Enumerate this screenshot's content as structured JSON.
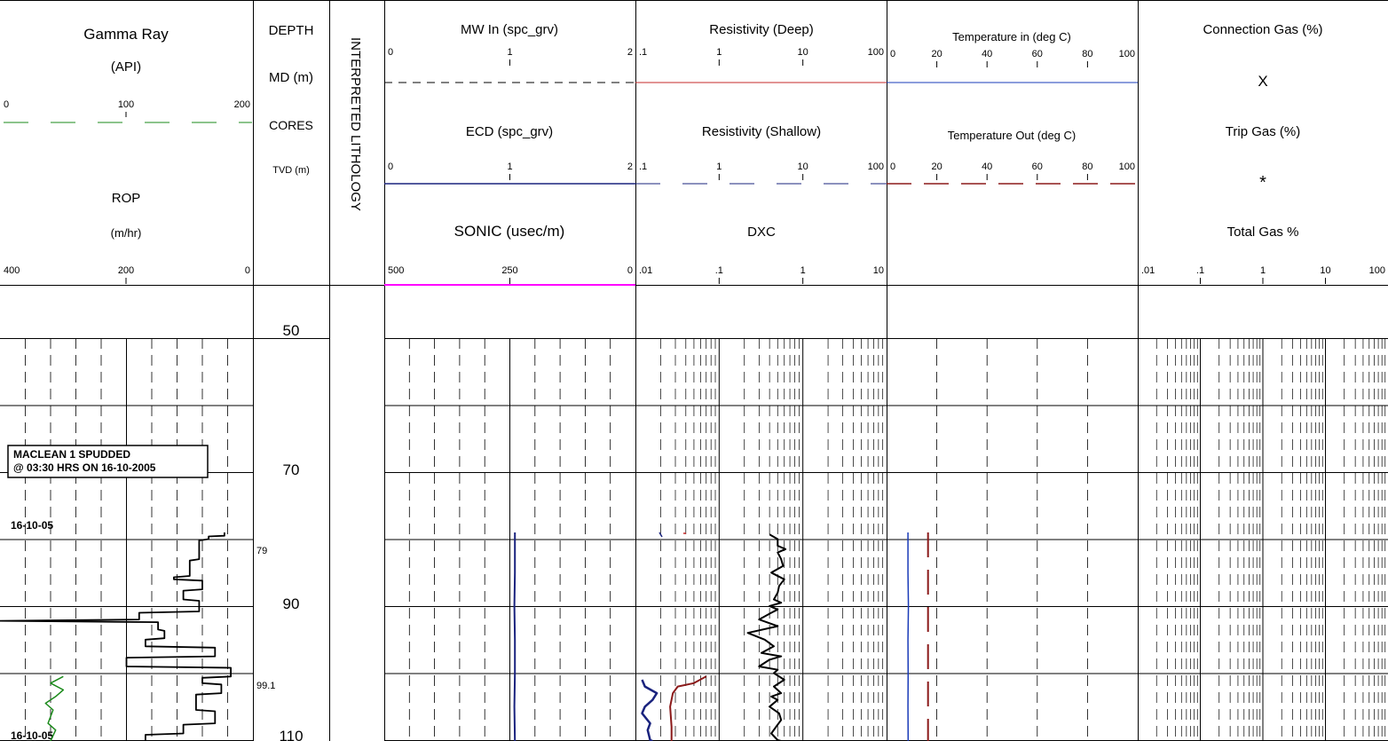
{
  "header": {
    "gamma": {
      "title": "Gamma Ray",
      "unit": "(API)",
      "ticks": [
        "0",
        "100",
        "200"
      ],
      "color": "#1a8a1a"
    },
    "rop": {
      "title": "ROP",
      "unit": "(m/hr)",
      "ticks": [
        "400",
        "200",
        "0"
      ]
    },
    "depth": {
      "title": "DEPTH",
      "md": "MD (m)",
      "cores": "CORES",
      "tvd": "TVD (m)"
    },
    "lithology": "INTERPRETED LITHOLOGY",
    "mw_in": {
      "title": "MW In (spc_grv)",
      "ticks": [
        "0",
        "1",
        "2"
      ]
    },
    "ecd": {
      "title": "ECD (spc_grv)",
      "ticks": [
        "0",
        "1",
        "2"
      ],
      "color": "#1a237e"
    },
    "sonic": {
      "title": "SONIC (usec/m)",
      "ticks": [
        "500",
        "250",
        "0"
      ],
      "color": "#ff00ff"
    },
    "res_deep": {
      "title": "Resistivity (Deep)",
      "ticks": [
        ".1",
        "1",
        "10",
        "100"
      ],
      "color": "#c62828"
    },
    "res_shallow": {
      "title": "Resistivity (Shallow)",
      "ticks": [
        ".1",
        "1",
        "10",
        "100"
      ],
      "color": "#1a237e"
    },
    "dxc": {
      "title": "DXC",
      "ticks": [
        ".01",
        ".1",
        "1",
        "10"
      ]
    },
    "temp_in": {
      "title": "Temperature in (deg C)",
      "ticks": [
        "0",
        "20",
        "40",
        "60",
        "80",
        "100"
      ],
      "color": "#1a3bb8"
    },
    "temp_out": {
      "title": "Temperature Out (deg C)",
      "ticks": [
        "0",
        "20",
        "40",
        "60",
        "80",
        "100"
      ],
      "color": "#8b1a1a"
    },
    "conn_gas": {
      "title": "Connection Gas (%)",
      "marker": "X",
      "color": "#8b1a1a"
    },
    "trip_gas": {
      "title": "Trip Gas (%)",
      "marker": "*",
      "color": "#1a237e"
    },
    "total_gas": {
      "title": "Total Gas %",
      "ticks": [
        ".01",
        ".1",
        "1",
        "10",
        "100"
      ]
    }
  },
  "depth_labels": [
    "50",
    "70",
    "90",
    "110"
  ],
  "tvd_labels": [
    "79",
    "99.1"
  ],
  "annotations": {
    "spud_line1": "MACLEAN 1 SPUDDED",
    "spud_line2": "@ 03:30 HRS ON 16-10-2005",
    "date1": "16-10-05",
    "date2": "16-10-05"
  },
  "chart_data": {
    "type": "line",
    "title": "",
    "y_axis": "Depth MD (m)",
    "depth_range": [
      46,
      112
    ],
    "series": [
      {
        "name": "ROP",
        "scale": [
          400,
          0
        ],
        "points": [
          [
            79.0,
            45
          ],
          [
            79.5,
            45
          ],
          [
            79.6,
            70
          ],
          [
            80.0,
            70
          ],
          [
            80.2,
            85
          ],
          [
            83.0,
            85
          ],
          [
            83.2,
            100
          ],
          [
            85.5,
            100
          ],
          [
            85.7,
            125
          ],
          [
            86.0,
            125
          ],
          [
            86.2,
            80
          ],
          [
            87.5,
            80
          ],
          [
            87.7,
            110
          ],
          [
            89.0,
            110
          ],
          [
            89.2,
            85
          ],
          [
            90.8,
            85
          ],
          [
            91.0,
            180
          ],
          [
            92.0,
            180
          ],
          [
            92.2,
            400
          ],
          [
            92.4,
            150
          ],
          [
            93.5,
            150
          ],
          [
            93.7,
            140
          ],
          [
            94.8,
            140
          ],
          [
            95.0,
            170
          ],
          [
            96.0,
            170
          ],
          [
            96.2,
            60
          ],
          [
            97.5,
            60
          ],
          [
            97.7,
            200
          ],
          [
            99.0,
            200
          ],
          [
            99.2,
            35
          ],
          [
            100.5,
            35
          ],
          [
            100.7,
            80
          ],
          [
            101.5,
            80
          ],
          [
            101.7,
            50
          ],
          [
            103.0,
            50
          ],
          [
            103.2,
            90
          ],
          [
            105.5,
            90
          ],
          [
            105.7,
            60
          ],
          [
            107.5,
            60
          ],
          [
            107.7,
            110
          ],
          [
            109.0,
            110
          ],
          [
            109.2,
            170
          ],
          [
            110.5,
            170
          ],
          [
            110.7,
            10
          ]
        ]
      },
      {
        "name": "Gamma Ray",
        "scale": [
          0,
          200
        ],
        "points": [
          [
            100.5,
            50
          ],
          [
            101.5,
            40
          ],
          [
            102.5,
            50
          ],
          [
            103.5,
            44
          ],
          [
            104.5,
            36
          ],
          [
            105.5,
            42
          ],
          [
            107.5,
            38
          ],
          [
            108.5,
            44
          ],
          [
            110.5,
            40
          ]
        ]
      },
      {
        "name": "SONIC",
        "scale": [
          500,
          0
        ],
        "points": [
          [
            79.0,
            240
          ],
          [
            85.0,
            240
          ],
          [
            90.0,
            241
          ],
          [
            95.0,
            240
          ],
          [
            100.0,
            240
          ],
          [
            105.0,
            241
          ],
          [
            111.0,
            240
          ]
        ]
      },
      {
        "name": "Resistivity (Deep)",
        "scale_log": [
          0.1,
          100
        ],
        "points": [
          [
            100.5,
            0.7
          ],
          [
            101.5,
            0.5
          ],
          [
            102.0,
            0.32
          ],
          [
            103.0,
            0.28
          ],
          [
            105.0,
            0.26
          ],
          [
            108.0,
            0.27
          ],
          [
            111.0,
            0.27
          ]
        ]
      },
      {
        "name": "Resistivity (Shallow)",
        "scale_log": [
          0.1,
          100
        ],
        "points": [
          [
            101.0,
            0.12
          ],
          [
            102.0,
            0.13
          ],
          [
            103.0,
            0.18
          ],
          [
            104.0,
            0.16
          ],
          [
            105.0,
            0.13
          ],
          [
            106.0,
            0.12
          ],
          [
            107.5,
            0.15
          ],
          [
            108.5,
            0.14
          ],
          [
            110.0,
            0.15
          ],
          [
            111.0,
            0.16
          ]
        ]
      },
      {
        "name": "DXC",
        "scale_log": [
          0.01,
          10
        ],
        "points": [
          [
            79.3,
            0.4
          ],
          [
            80.0,
            0.5
          ],
          [
            81.0,
            0.5
          ],
          [
            81.5,
            0.62
          ],
          [
            82.0,
            0.5
          ],
          [
            83.0,
            0.55
          ],
          [
            84.0,
            0.58
          ],
          [
            85.0,
            0.42
          ],
          [
            86.0,
            0.6
          ],
          [
            87.0,
            0.52
          ],
          [
            88.0,
            0.5
          ],
          [
            89.0,
            0.45
          ],
          [
            89.5,
            0.55
          ],
          [
            90.0,
            0.4
          ],
          [
            90.5,
            0.5
          ],
          [
            91.0,
            0.42
          ],
          [
            92.0,
            0.3
          ],
          [
            93.0,
            0.5
          ],
          [
            94.0,
            0.22
          ],
          [
            95.0,
            0.35
          ],
          [
            96.0,
            0.45
          ],
          [
            97.0,
            0.32
          ],
          [
            97.5,
            0.55
          ],
          [
            98.0,
            0.4
          ],
          [
            99.0,
            0.3
          ],
          [
            99.5,
            0.5
          ],
          [
            100.0,
            0.45
          ],
          [
            101.0,
            0.6
          ],
          [
            102.0,
            0.45
          ],
          [
            103.0,
            0.55
          ],
          [
            103.5,
            0.42
          ],
          [
            104.0,
            0.5
          ],
          [
            105.0,
            0.4
          ],
          [
            106.0,
            0.52
          ],
          [
            107.0,
            0.55
          ],
          [
            108.0,
            0.48
          ],
          [
            109.0,
            0.42
          ],
          [
            110.0,
            0.5
          ],
          [
            111.0,
            0.55
          ]
        ]
      },
      {
        "name": "Temperature in",
        "scale": [
          0,
          100
        ],
        "points": [
          [
            79.0,
            8.5
          ],
          [
            85.0,
            8.5
          ],
          [
            90.0,
            8.7
          ],
          [
            95.0,
            8.5
          ],
          [
            100.0,
            8.6
          ],
          [
            105.0,
            8.5
          ],
          [
            111.0,
            8.6
          ]
        ]
      },
      {
        "name": "Temperature Out",
        "scale": [
          0,
          100
        ],
        "points": [
          [
            79.0,
            16.5
          ],
          [
            90.0,
            16.5
          ],
          [
            100.0,
            16.5
          ],
          [
            111.0,
            16.5
          ]
        ]
      }
    ]
  }
}
